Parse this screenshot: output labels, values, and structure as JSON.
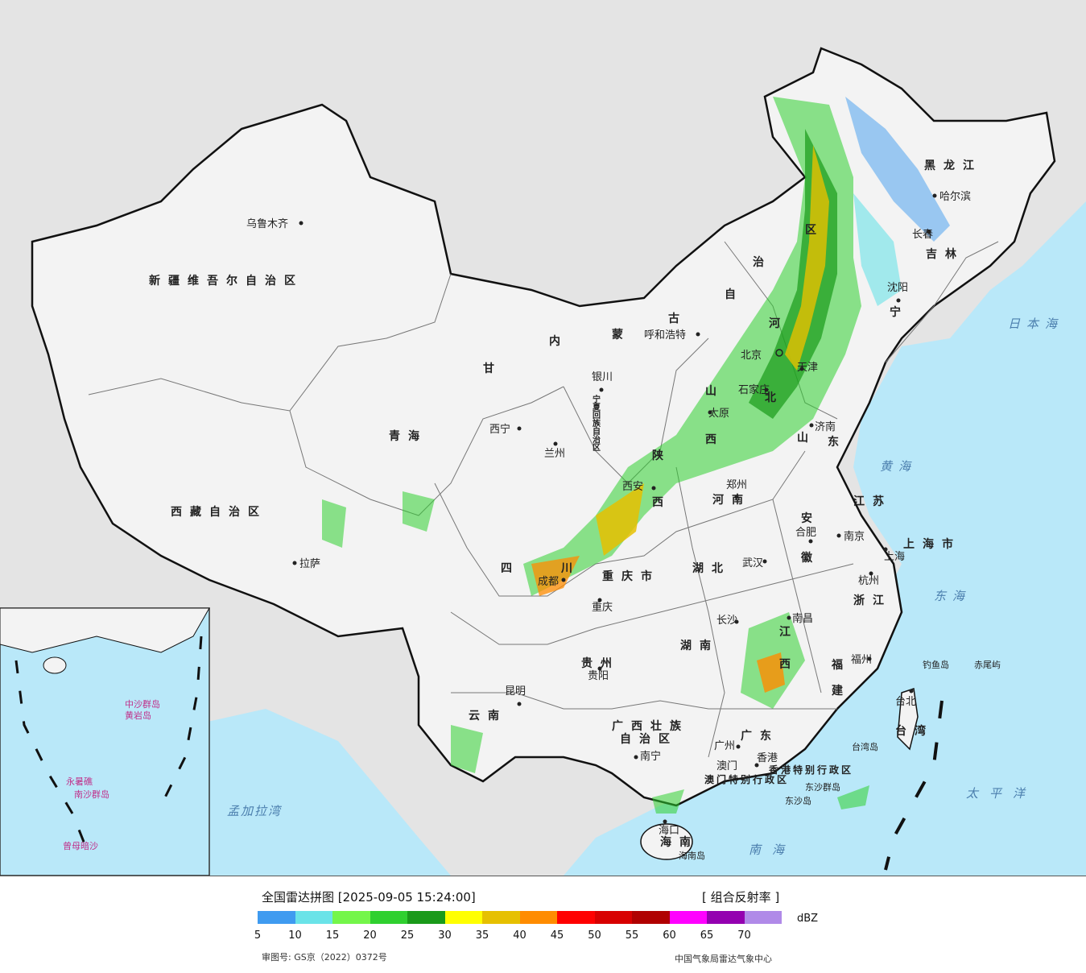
{
  "map": {
    "provinces": [
      "新疆维吾尔自治区",
      "西藏自治区",
      "青海",
      "甘",
      "内",
      "蒙",
      "古",
      "自",
      "治",
      "区",
      "黑龙江",
      "吉林",
      "宁",
      "河",
      "北",
      "山",
      "西",
      "陕",
      "西",
      "河南",
      "湖北",
      "四",
      "川",
      "重庆市",
      "贵州",
      "云南",
      "广西壮族",
      "自治区",
      "湖南",
      "江",
      "西",
      "安",
      "徽",
      "江苏",
      "上海市",
      "浙江",
      "福",
      "建",
      "广东",
      "香港特别行政区",
      "澳门特别行政区",
      "海南",
      "山",
      "东",
      "宁夏回族自治区",
      "台湾"
    ],
    "cities": [
      "乌鲁木齐",
      "拉萨",
      "西宁",
      "兰州",
      "银川",
      "呼和浩特",
      "北京",
      "天津",
      "石家庄",
      "太原",
      "济南",
      "郑州",
      "西安",
      "成都",
      "重庆",
      "贵阳",
      "昆明",
      "南宁",
      "广州",
      "澳门",
      "香港",
      "长沙",
      "武汉",
      "合肥",
      "南京",
      "上海",
      "杭州",
      "南昌",
      "福州",
      "台北",
      "哈尔滨",
      "长春",
      "沈阳",
      "海口"
    ],
    "seas": [
      "日本海",
      "黄海",
      "东海",
      "太平洋",
      "南海",
      "孟加拉湾"
    ],
    "islands": [
      "钓鱼岛",
      "赤尾屿",
      "台湾岛",
      "东沙群岛",
      "东沙岛",
      "海南岛",
      "中沙群岛",
      "黄岩岛",
      "永暑礁",
      "南沙群岛",
      "曾母暗沙"
    ]
  },
  "legend": {
    "title": "全国雷达拼图 [2025-09-05 15:24:00]",
    "product": "[ 组合反射率 ]",
    "unit": "dBZ",
    "colors": [
      "#3f9bf0",
      "#6ae3e8",
      "#74f64a",
      "#2fd02f",
      "#1a9a1a",
      "#ffff00",
      "#e6c000",
      "#ff8c00",
      "#ff0000",
      "#d80000",
      "#b00000",
      "#ff00ff",
      "#9400b0",
      "#b08ae8"
    ],
    "ticks": [
      "5",
      "10",
      "15",
      "20",
      "25",
      "30",
      "35",
      "40",
      "45",
      "50",
      "55",
      "60",
      "65",
      "70"
    ],
    "approval": "审图号: GS京（2022）0372号",
    "credit": "中国气象局雷达气象中心"
  }
}
